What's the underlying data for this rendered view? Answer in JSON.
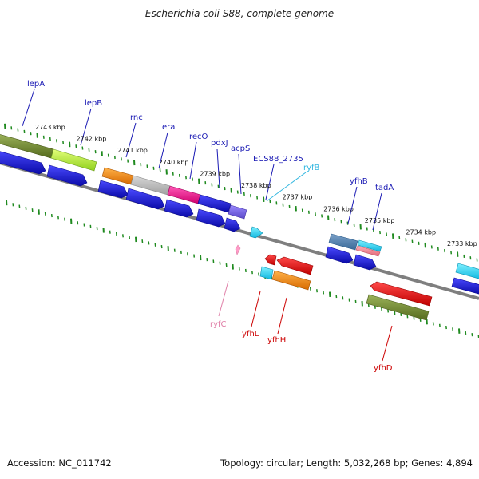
{
  "title": "Escherichia coli S88, complete genome",
  "footer": {
    "accession": "Accession: NC_011742",
    "summary": "Topology: circular; Length: 5,032,268 bp; Genes: 4,894"
  },
  "scale_labels": [
    "2743 kbp",
    "2742 kbp",
    "2741 kbp",
    "2740 kbp",
    "2739 kbp",
    "2738 kbp",
    "2737 kbp",
    "2736 kbp",
    "2735 kbp",
    "2734 kbp",
    "2733 kbp"
  ],
  "gene_labels": {
    "lepA": "lepA",
    "lepB": "lepB",
    "rnc": "rnc",
    "era": "era",
    "recO": "recO",
    "pdxJ": "pdxJ",
    "acpS": "acpS",
    "ECS88_2735": "ECS88_2735",
    "ryfB": "ryfB",
    "yfhB": "yfhB",
    "tadA": "tadA",
    "ryfC": "ryfC",
    "yfhL": "yfhL",
    "yfhH": "yfhH",
    "yfhD": "yfhD"
  },
  "colors": {
    "cds_blue": "#1a1adf",
    "backbone": "#7f7f7f",
    "tick_green": "#1f8a1f",
    "label_blue": "#1a1ab4",
    "label_red": "#cc0000",
    "label_pink": "#e080a8",
    "label_cyan": "#33b7e0"
  }
}
